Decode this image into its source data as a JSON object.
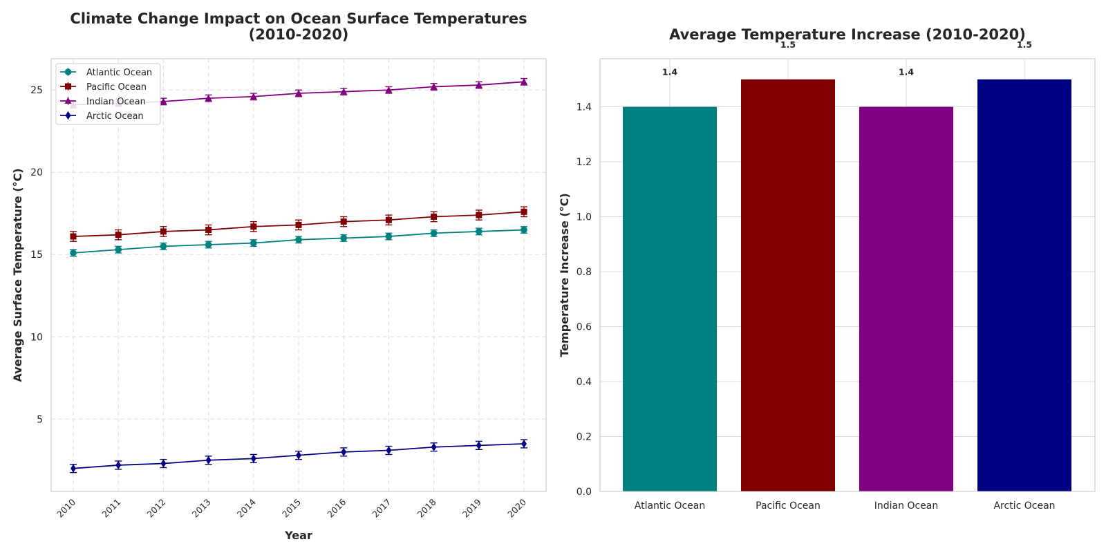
{
  "chart_data": [
    {
      "type": "line",
      "title": "Climate Change Impact on Ocean Surface Temperatures\n(2010-2020)",
      "xlabel": "Year",
      "ylabel": "Average Surface Temperature (°C)",
      "x": [
        "2010",
        "2011",
        "2012",
        "2013",
        "2014",
        "2015",
        "2016",
        "2017",
        "2018",
        "2019",
        "2020"
      ],
      "ylim": [
        0.6,
        26.9
      ],
      "yticks": [
        "5",
        "10",
        "15",
        "20",
        "25"
      ],
      "grid": true,
      "grid_style": "dashed",
      "legend_position": "top-left",
      "error_bars": true,
      "series": [
        {
          "name": "Atlantic Ocean",
          "color": "#008080",
          "marker": "circle",
          "values": [
            15.1,
            15.3,
            15.5,
            15.6,
            15.7,
            15.9,
            16.0,
            16.1,
            16.3,
            16.4,
            16.5
          ],
          "errors": [
            0.2,
            0.2,
            0.2,
            0.2,
            0.2,
            0.2,
            0.2,
            0.2,
            0.2,
            0.2,
            0.2
          ]
        },
        {
          "name": "Pacific Ocean",
          "color": "#800000",
          "marker": "square",
          "values": [
            16.1,
            16.2,
            16.4,
            16.5,
            16.7,
            16.8,
            17.0,
            17.1,
            17.3,
            17.4,
            17.6
          ],
          "errors": [
            0.3,
            0.3,
            0.3,
            0.3,
            0.3,
            0.3,
            0.3,
            0.3,
            0.3,
            0.3,
            0.3
          ]
        },
        {
          "name": "Indian Ocean",
          "color": "#800080",
          "marker": "triangle",
          "values": [
            24.1,
            24.2,
            24.3,
            24.5,
            24.6,
            24.8,
            24.9,
            25.0,
            25.2,
            25.3,
            25.5
          ],
          "errors": [
            0.2,
            0.2,
            0.2,
            0.2,
            0.2,
            0.2,
            0.2,
            0.2,
            0.2,
            0.2,
            0.2
          ]
        },
        {
          "name": "Arctic Ocean",
          "color": "#000080",
          "marker": "diamond",
          "values": [
            2.0,
            2.2,
            2.3,
            2.5,
            2.6,
            2.8,
            3.0,
            3.1,
            3.3,
            3.4,
            3.5
          ],
          "errors": [
            0.25,
            0.25,
            0.25,
            0.25,
            0.25,
            0.25,
            0.25,
            0.25,
            0.25,
            0.25,
            0.25
          ]
        }
      ]
    },
    {
      "type": "bar",
      "title": "Average Temperature Increase (2010-2020)",
      "xlabel": "",
      "ylabel": "Temperature Increase (°C)",
      "categories": [
        "Atlantic Ocean",
        "Pacific Ocean",
        "Indian Ocean",
        "Arctic Ocean"
      ],
      "values": [
        1.4,
        1.5,
        1.4,
        1.5
      ],
      "data_labels": [
        "1.4",
        "1.5",
        "1.4",
        "1.5"
      ],
      "colors": [
        "#008080",
        "#800000",
        "#800080",
        "#000080"
      ],
      "ylim": [
        0,
        1.575
      ],
      "yticks": [
        "0.0",
        "0.2",
        "0.4",
        "0.6",
        "0.8",
        "1.0",
        "1.2",
        "1.4"
      ],
      "grid": true,
      "grid_style": "solid"
    }
  ]
}
